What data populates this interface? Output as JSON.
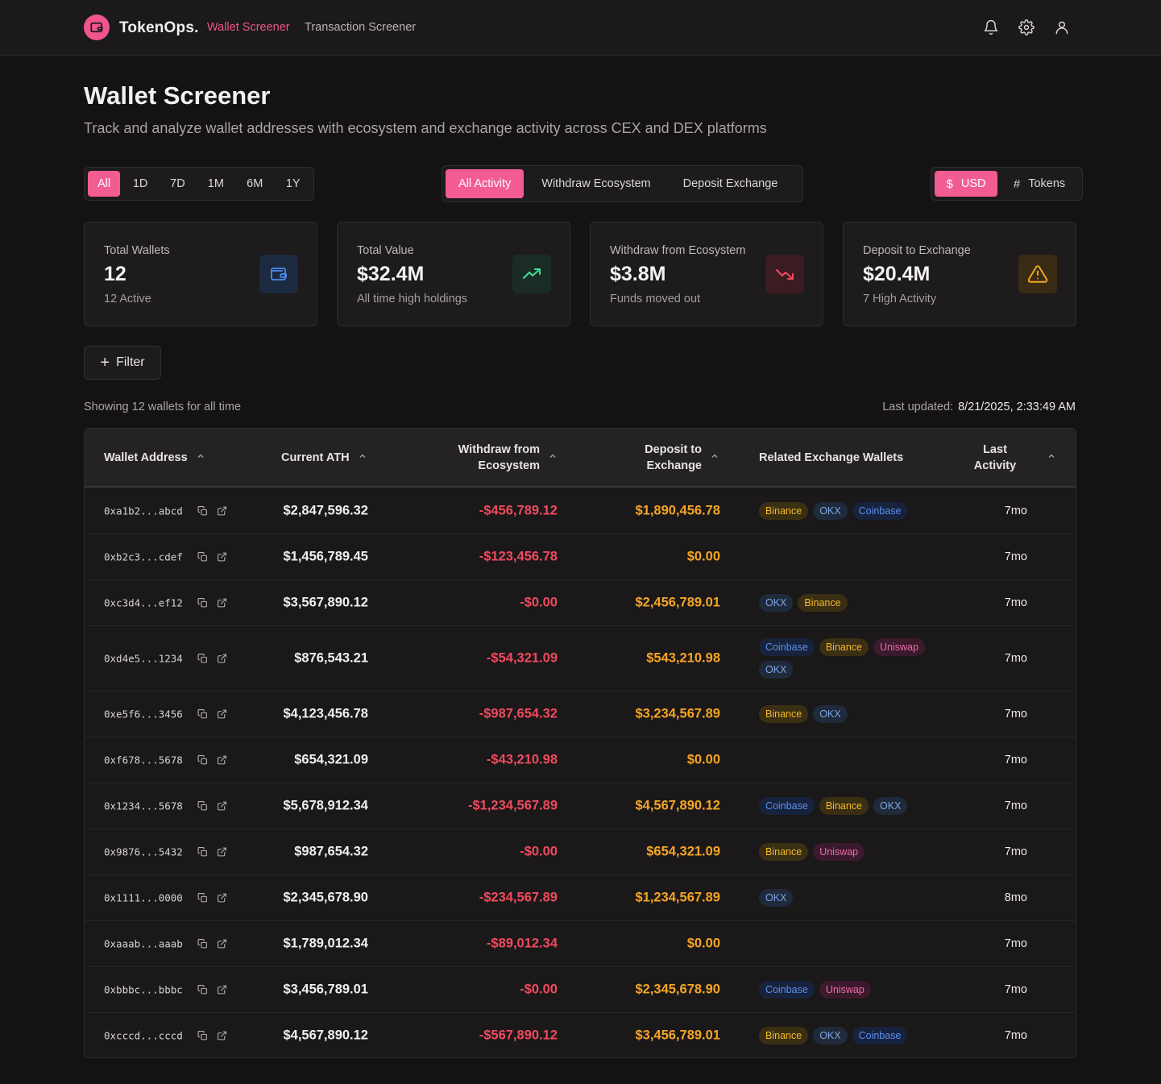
{
  "app": {
    "brand": "TokenOps.",
    "nav": [
      "Wallet Screener",
      "Transaction Screener"
    ]
  },
  "colors": {
    "accent": "#f35c92",
    "negative": "#f04a5e",
    "deposit": "#f5a524"
  },
  "page": {
    "title": "Wallet Screener",
    "subtitle": "Track and analyze wallet addresses with ecosystem and exchange activity across CEX and DEX platforms"
  },
  "time_ranges": {
    "options": [
      "All",
      "1D",
      "7D",
      "1M",
      "6M",
      "1Y"
    ],
    "selected": "All"
  },
  "activity_filters": {
    "options": [
      "All Activity",
      "Withdraw Ecosystem",
      "Deposit Exchange"
    ],
    "selected": "All Activity"
  },
  "currency": {
    "options": [
      "USD",
      "Tokens"
    ],
    "selected": "USD",
    "icons": [
      "dollar-icon",
      "hash-icon"
    ]
  },
  "cards": [
    {
      "label": "Total Wallets",
      "value": "12",
      "note": "12 Active",
      "icon": "wallet-icon",
      "color": "#4a8df0"
    },
    {
      "label": "Total Value",
      "value": "$32.4M",
      "note": "All time high holdings",
      "icon": "trending-up-icon",
      "color": "#3ddc97"
    },
    {
      "label": "Withdraw from Ecosystem",
      "value": "$3.8M",
      "note": "Funds moved out",
      "icon": "trending-down-icon",
      "color": "#f04a5e"
    },
    {
      "label": "Deposit to Exchange",
      "value": "$20.4M",
      "note": "7 High Activity",
      "icon": "alert-triangle-icon",
      "color": "#f5a524"
    }
  ],
  "filter": {
    "label": "Filter"
  },
  "summary": {
    "showing": "Showing 12 wallets for all time",
    "updated_label": "Last updated:",
    "updated_value": "8/21/2025, 2:33:49 AM"
  },
  "table": {
    "headers": {
      "address": "Wallet Address",
      "ath": "Current ATH",
      "withdraw": [
        "Withdraw from",
        "Ecosystem"
      ],
      "deposit": [
        "Deposit to",
        "Exchange"
      ],
      "related": "Related Exchange Wallets",
      "last": [
        "Last",
        "Activity"
      ]
    },
    "rows": [
      {
        "address": "0xa1b2...abcd",
        "ath": "$2,847,596.32",
        "withdraw": "-$456,789.12",
        "deposit": "$1,890,456.78",
        "exchanges": [
          "Binance",
          "OKX",
          "Coinbase"
        ],
        "last": "7mo"
      },
      {
        "address": "0xb2c3...cdef",
        "ath": "$1,456,789.45",
        "withdraw": "-$123,456.78",
        "deposit": "$0.00",
        "exchanges": [],
        "last": "7mo"
      },
      {
        "address": "0xc3d4...ef12",
        "ath": "$3,567,890.12",
        "withdraw": "-$0.00",
        "deposit": "$2,456,789.01",
        "exchanges": [
          "OKX",
          "Binance"
        ],
        "last": "7mo"
      },
      {
        "address": "0xd4e5...1234",
        "ath": "$876,543.21",
        "withdraw": "-$54,321.09",
        "deposit": "$543,210.98",
        "exchanges": [
          "Coinbase",
          "Binance",
          "Uniswap",
          "OKX"
        ],
        "last": "7mo"
      },
      {
        "address": "0xe5f6...3456",
        "ath": "$4,123,456.78",
        "withdraw": "-$987,654.32",
        "deposit": "$3,234,567.89",
        "exchanges": [
          "Binance",
          "OKX"
        ],
        "last": "7mo"
      },
      {
        "address": "0xf678...5678",
        "ath": "$654,321.09",
        "withdraw": "-$43,210.98",
        "deposit": "$0.00",
        "exchanges": [],
        "last": "7mo"
      },
      {
        "address": "0x1234...5678",
        "ath": "$5,678,912.34",
        "withdraw": "-$1,234,567.89",
        "deposit": "$4,567,890.12",
        "exchanges": [
          "Coinbase",
          "Binance",
          "OKX"
        ],
        "last": "7mo"
      },
      {
        "address": "0x9876...5432",
        "ath": "$987,654.32",
        "withdraw": "-$0.00",
        "deposit": "$654,321.09",
        "exchanges": [
          "Binance",
          "Uniswap"
        ],
        "last": "7mo"
      },
      {
        "address": "0x1111...0000",
        "ath": "$2,345,678.90",
        "withdraw": "-$234,567.89",
        "deposit": "$1,234,567.89",
        "exchanges": [
          "OKX"
        ],
        "last": "8mo"
      },
      {
        "address": "0xaaab...aaab",
        "ath": "$1,789,012.34",
        "withdraw": "-$89,012.34",
        "deposit": "$0.00",
        "exchanges": [],
        "last": "7mo"
      },
      {
        "address": "0xbbbc...bbbc",
        "ath": "$3,456,789.01",
        "withdraw": "-$0.00",
        "deposit": "$2,345,678.90",
        "exchanges": [
          "Coinbase",
          "Uniswap"
        ],
        "last": "7mo"
      },
      {
        "address": "0xcccd...cccd",
        "ath": "$4,567,890.12",
        "withdraw": "-$567,890.12",
        "deposit": "$3,456,789.01",
        "exchanges": [
          "Binance",
          "OKX",
          "Coinbase"
        ],
        "last": "7mo"
      }
    ]
  }
}
